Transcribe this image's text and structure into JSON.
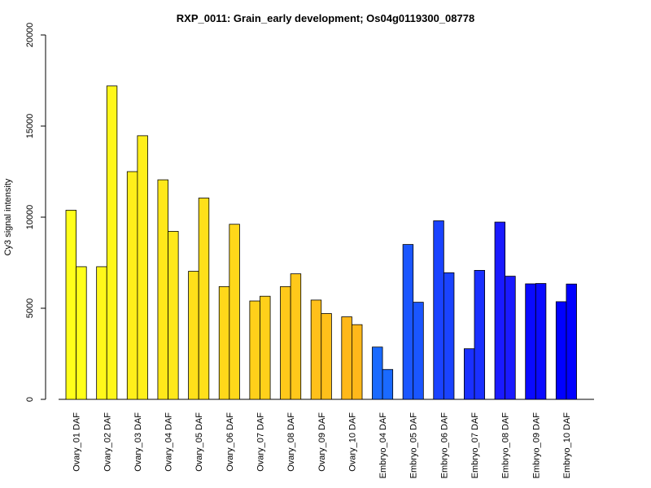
{
  "chart_data": {
    "type": "bar",
    "title": "RXP_0011: Grain_early development; Os04g0119300_08778",
    "xlabel": "",
    "ylabel": "Cy3 signal intensity",
    "ylim": [
      0,
      20000
    ],
    "yticks": [
      0,
      5000,
      10000,
      15000,
      20000
    ],
    "grid": false,
    "categories": [
      "Ovary_01 DAF",
      "Ovary_02 DAF",
      "Ovary_03 DAF",
      "Ovary_04 DAF",
      "Ovary_05 DAF",
      "Ovary_06 DAF",
      "Ovary_07 DAF",
      "Ovary_08 DAF",
      "Ovary_09 DAF",
      "Ovary_10 DAF",
      "Embryo_04 DAF",
      "Embryo_05 DAF",
      "Embryo_06 DAF",
      "Embryo_07 DAF",
      "Embryo_08 DAF",
      "Embryo_09 DAF",
      "Embryo_10 DAF"
    ],
    "series": [
      {
        "values": [
          10380,
          7280,
          12500,
          12050,
          7030,
          6190,
          5400,
          6190,
          5450,
          4530,
          2870,
          8500,
          9800,
          2780,
          9730,
          6340,
          5360
        ]
      },
      {
        "values": [
          7280,
          17200,
          14470,
          9220,
          11050,
          9610,
          5660,
          6890,
          4710,
          4100,
          1640,
          5330,
          6950,
          7080,
          6760,
          6360,
          6330
        ]
      }
    ],
    "colors": [
      "#FFFF1A",
      "#FFF71A",
      "#FFEF1A",
      "#FFE81A",
      "#FFE01A",
      "#FFD81A",
      "#FFD01A",
      "#FFC81A",
      "#FFC01A",
      "#FFB81A",
      "#1A6AFF",
      "#1A56FF",
      "#1A43FF",
      "#1A30FF",
      "#1A1AFF",
      "#0A0AFF",
      "#0000FF"
    ]
  }
}
